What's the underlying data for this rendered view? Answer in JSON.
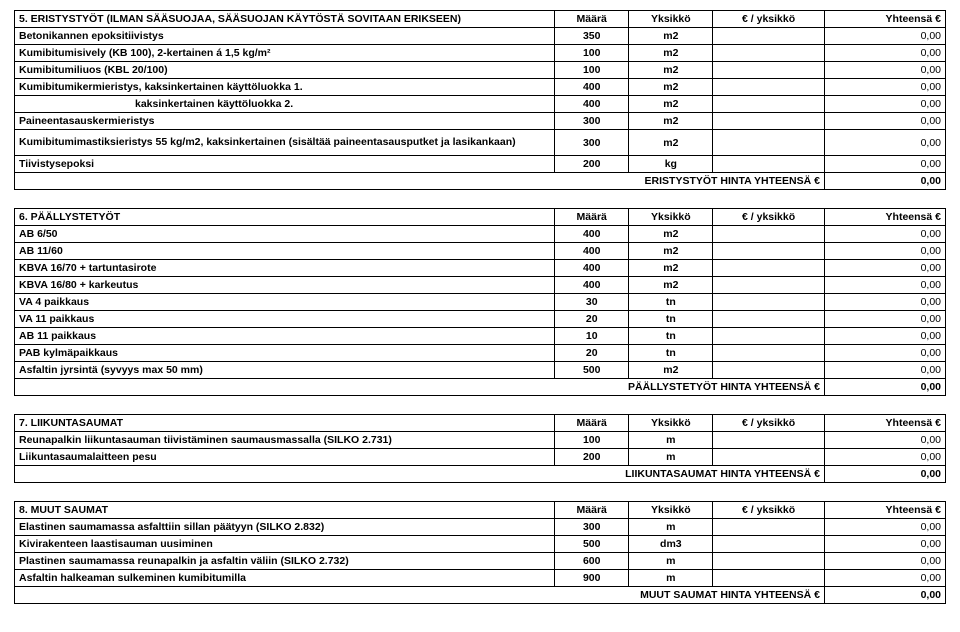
{
  "sections": [
    {
      "id": "s5",
      "header": [
        "5. ERISTYSTYÖT (ILMAN SÄÄSUOJAA, SÄÄSUOJAN KÄYTÖSTÄ SOVITAAN ERIKSEEN)",
        "Määrä",
        "Yksikkö",
        "€ / yksikkö",
        "Yhteensä €"
      ],
      "rows": [
        {
          "label": "Betonikannen epoksitiivistys",
          "qty": "350",
          "unit": "m2",
          "total": "0,00"
        },
        {
          "label": "Kumibitumisively (KB 100), 2-kertainen á 1,5 kg/m²",
          "qty": "100",
          "unit": "m2",
          "total": "0,00"
        },
        {
          "label": "Kumibitumiliuos (KBL 20/100)",
          "qty": "100",
          "unit": "m2",
          "total": "0,00"
        },
        {
          "label": "Kumibitumikermieristys, kaksinkertainen käyttöluokka 1.",
          "qty": "400",
          "unit": "m2",
          "total": "0,00"
        },
        {
          "label": "kaksinkertainen käyttöluokka 2.",
          "indent": true,
          "qty": "400",
          "unit": "m2",
          "total": "0,00"
        },
        {
          "label": "Paineentasauskermieristys",
          "qty": "300",
          "unit": "m2",
          "total": "0,00"
        },
        {
          "label": "Kumibitumimastiksieristys 55 kg/m2, kaksinkertainen (sisältää paineentasausputket ja lasikankaan)",
          "wrap": true,
          "qty": "300",
          "unit": "m2",
          "total": "0,00"
        },
        {
          "label": "Tiivistysepoksi",
          "qty": "200",
          "unit": "kg",
          "total": "0,00"
        }
      ],
      "footer": {
        "label": "ERISTYSTYÖT HINTA YHTEENSÄ €",
        "total": "0,00"
      }
    },
    {
      "id": "s6",
      "header": [
        "6. PÄÄLLYSTETYÖT",
        "Määrä",
        "Yksikkö",
        "€ / yksikkö",
        "Yhteensä €"
      ],
      "rows": [
        {
          "label": "AB 6/50",
          "qty": "400",
          "unit": "m2",
          "total": "0,00"
        },
        {
          "label": "AB 11/60",
          "qty": "400",
          "unit": "m2",
          "total": "0,00"
        },
        {
          "label": "KBVA 16/70 + tartuntasirote",
          "qty": "400",
          "unit": "m2",
          "total": "0,00"
        },
        {
          "label": "KBVA 16/80 + karkeutus",
          "qty": "400",
          "unit": "m2",
          "total": "0,00"
        },
        {
          "label": "VA 4 paikkaus",
          "qty": "30",
          "unit": "tn",
          "total": "0,00"
        },
        {
          "label": "VA 11 paikkaus",
          "qty": "20",
          "unit": "tn",
          "total": "0,00"
        },
        {
          "label": "AB 11 paikkaus",
          "qty": "10",
          "unit": "tn",
          "total": "0,00"
        },
        {
          "label": "PAB kylmäpaikkaus",
          "qty": "20",
          "unit": "tn",
          "total": "0,00"
        },
        {
          "label": "Asfaltin jyrsintä (syvyys max 50 mm)",
          "qty": "500",
          "unit": "m2",
          "total": "0,00"
        }
      ],
      "footer": {
        "label": "PÄÄLLYSTETYÖT HINTA YHTEENSÄ €",
        "total": "0,00"
      }
    },
    {
      "id": "s7",
      "header": [
        "7. LIIKUNTASAUMAT",
        "Määrä",
        "Yksikkö",
        "€ / yksikkö",
        "Yhteensä €"
      ],
      "rows": [
        {
          "label": "Reunapalkin liikuntasauman tiivistäminen saumausmassalla (SILKO 2.731)",
          "qty": "100",
          "unit": "m",
          "total": "0,00"
        },
        {
          "label": "Liikuntasaumalaitteen pesu",
          "qty": "200",
          "unit": "m",
          "total": "0,00"
        }
      ],
      "footer": {
        "label": "LIIKUNTASAUMAT HINTA YHTEENSÄ €",
        "total": "0,00"
      }
    },
    {
      "id": "s8",
      "header": [
        "8. MUUT SAUMAT",
        "Määrä",
        "Yksikkö",
        "€ / yksikkö",
        "Yhteensä €"
      ],
      "rows": [
        {
          "label": "Elastinen saumamassa asfalttiin sillan päätyyn (SILKO 2.832)",
          "qty": "300",
          "unit": "m",
          "total": "0,00"
        },
        {
          "label": "Kivirakenteen laastisauman uusiminen",
          "qty": "500",
          "unit": "dm3",
          "total": "0,00"
        },
        {
          "label": "Plastinen saumamassa reunapalkin ja asfaltin väliin (SILKO 2.732)",
          "qty": "600",
          "unit": "m",
          "total": "0,00"
        },
        {
          "label": "Asfaltin halkeaman sulkeminen kumibitumilla",
          "qty": "900",
          "unit": "m",
          "total": "0,00"
        }
      ],
      "footer": {
        "label": "MUUT SAUMAT HINTA YHTEENSÄ €",
        "total": "0,00"
      }
    }
  ]
}
